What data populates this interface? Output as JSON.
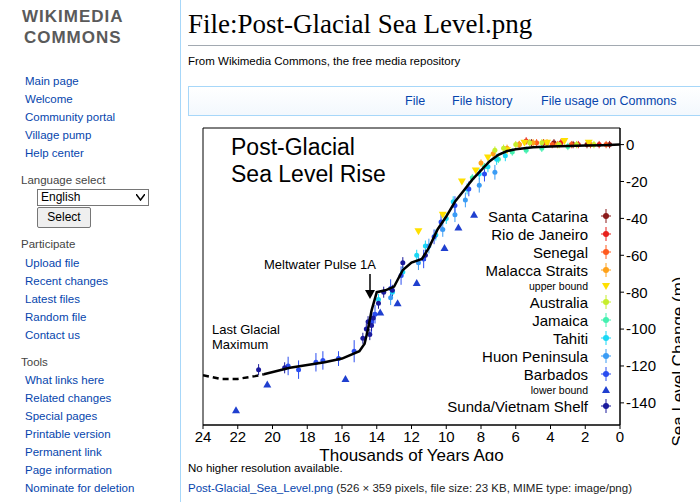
{
  "logo": [
    "WIKIMEDIA",
    "COMMONS"
  ],
  "sidebar": {
    "navigation": [
      "Main page",
      "Welcome",
      "Community portal",
      "Village pump",
      "Help center"
    ],
    "language_select": {
      "heading": "Language select",
      "selected": "English",
      "button": "Select"
    },
    "participate": {
      "heading": "Participate",
      "links": [
        "Upload file",
        "Recent changes",
        "Latest files",
        "Random file",
        "Contact us"
      ]
    },
    "tools": {
      "heading": "Tools",
      "links": [
        "What links here",
        "Related changes",
        "Special pages",
        "Printable version",
        "Permanent link",
        "Page information",
        "Nominate for deletion"
      ]
    }
  },
  "header": {
    "title": "File:Post-Glacial Sea Level.png",
    "subtitle": "From Wikimedia Commons, the free media repository"
  },
  "tabs": [
    "File",
    "File history",
    "File usage on Commons"
  ],
  "footer": {
    "note": "No higher resolution available.",
    "file_link": "Post-Glacial_Sea_Level.png",
    "file_info": "(526 × 359 pixels, file size: 23 KB, MIME type: image/png)"
  },
  "chart_data": {
    "type": "scatter",
    "title": [
      "Post-Glacial",
      "Sea Level Rise"
    ],
    "x_label": "Thousands of Years Ago",
    "y_label": "Sea Level Change (m)",
    "xlim": [
      24,
      0
    ],
    "xticks": [
      24,
      22,
      20,
      18,
      16,
      14,
      12,
      10,
      8,
      6,
      4,
      2,
      0
    ],
    "ylim": [
      -152,
      9
    ],
    "yticks": [
      0,
      -20,
      -40,
      -60,
      -80,
      -100,
      -120,
      -140
    ],
    "grid": false,
    "legend": "lower right",
    "annotations": [
      [
        "Meltwater Pulse 1A"
      ],
      [
        "Last Glacial",
        "Maximum"
      ]
    ],
    "lines": [
      {
        "color": "#000000",
        "line_style": "dashed",
        "x": [
          24,
          23,
          22,
          21,
          20.5
        ],
        "values": [
          -125,
          -127,
          -127,
          -125.5,
          -124.5
        ]
      },
      {
        "color": "#000000",
        "line_style": "solid",
        "x": [
          20.5,
          19,
          18,
          17,
          16,
          15,
          14.7,
          14.5,
          14.3,
          14.0,
          13.5,
          13.0,
          12.5,
          12.0,
          11.4,
          11.0,
          10.5,
          10.0,
          9.5,
          9.0,
          8.5,
          8.0,
          7.5,
          7.0,
          6.5,
          6.0,
          5.0,
          4.0,
          3.0,
          2.0,
          1.0,
          0
        ],
        "values": [
          -124.5,
          -121,
          -119.5,
          -118,
          -116,
          -112,
          -108,
          -100,
          -90,
          -80,
          -79,
          -77,
          -68,
          -64,
          -62,
          -56,
          -46,
          -39,
          -31,
          -25,
          -19,
          -14,
          -9,
          -5.5,
          -3.5,
          -2.5,
          -1.5,
          -1,
          -0.8,
          -0.5,
          -0.3,
          0
        ]
      }
    ],
    "series": [
      {
        "name": "Santa Catarina",
        "color": "#8b1a1a",
        "marker": "circle",
        "x": [
          5.1,
          3.8,
          2.7,
          1.9,
          0.6
        ],
        "values": [
          1,
          1,
          0,
          0,
          0
        ],
        "errors": [
          2,
          2,
          2,
          2,
          2
        ]
      },
      {
        "name": "Rio de Janeiro",
        "color": "#e8201c",
        "marker": "circle",
        "x": [
          5.4,
          4.4,
          3.4,
          2.4,
          1.2
        ],
        "values": [
          2,
          1,
          1,
          0,
          0
        ],
        "errors": [
          2,
          2,
          2,
          2,
          2
        ]
      },
      {
        "name": "Senegal",
        "color": "#ff5a1f",
        "marker": "circle",
        "x": [
          5.8,
          4.8,
          3.9,
          2.8,
          1.7,
          0.8
        ],
        "values": [
          0,
          1,
          0,
          0,
          0,
          0
        ],
        "errors": [
          2,
          2,
          2,
          2,
          2,
          2
        ]
      },
      {
        "name": "Malacca Straits",
        "color": "#ffa21a",
        "marker": "circle",
        "x": [
          8.0,
          7.3,
          6.5,
          5.8,
          5.0,
          4.2,
          3.6
        ],
        "values": [
          -10,
          -5,
          -2,
          0,
          1,
          1,
          0
        ],
        "errors": [
          2,
          2,
          2,
          2,
          2,
          2,
          2
        ]
      },
      {
        "name": "upper bound",
        "color": "#ffe000",
        "marker": "triangle-down",
        "x": [
          11.6,
          10.2,
          9.1,
          8.3,
          7.6,
          6.5,
          5.5,
          4.2,
          3.2,
          1.8
        ],
        "values": [
          -47,
          -38,
          -20,
          -14,
          -7,
          -3,
          1,
          1,
          2,
          1
        ]
      },
      {
        "name": "Australia",
        "color": "#c6ee2c",
        "marker": "circle",
        "x": [
          7.2,
          6.7,
          6.0,
          5.2,
          4.5,
          3.5,
          2.5,
          1.5
        ],
        "values": [
          -3,
          -2,
          0,
          1,
          1,
          0,
          0,
          0
        ],
        "errors": [
          2,
          2,
          2,
          2,
          2,
          2,
          2,
          2
        ]
      },
      {
        "name": "Jamaica",
        "color": "#44f0b0",
        "marker": "circle",
        "x": [
          8.5,
          7.8,
          7.0,
          6.2,
          5.4,
          4.5,
          3.0
        ],
        "values": [
          -18,
          -12,
          -8,
          -4,
          -3,
          -2,
          -1
        ],
        "errors": [
          2,
          2,
          2,
          2,
          2,
          2,
          2
        ]
      },
      {
        "name": "Tahiti",
        "color": "#1ad8f5",
        "marker": "circle",
        "x": [
          13.9,
          13.1,
          12.5,
          11.7,
          11.2,
          10.6,
          10.0,
          9.6,
          8.8,
          8.1,
          7.6,
          7.1,
          6.6
        ],
        "values": [
          -84,
          -80,
          -69,
          -60,
          -55,
          -49,
          -40,
          -31,
          -24,
          -16,
          -12,
          -8,
          -6
        ],
        "errors": [
          3,
          3,
          3,
          3,
          3,
          3,
          3,
          3,
          3,
          3,
          3,
          3,
          3
        ]
      },
      {
        "name": "Huon Peninsula",
        "color": "#3a9cf5",
        "marker": "circle",
        "x": [
          13.2,
          11.6,
          11.0,
          10.2,
          9.5,
          8.9,
          8.1,
          7.2
        ],
        "values": [
          -83,
          -64,
          -55,
          -46,
          -38,
          -30,
          -22,
          -15
        ],
        "errors": [
          4,
          4,
          4,
          4,
          4,
          4,
          4,
          4
        ]
      },
      {
        "name": "Barbados",
        "color": "#2a4df0",
        "marker": "circle",
        "x": [
          19.1,
          18.5,
          17.5,
          17.1,
          16.2,
          15.3,
          14.3,
          14.1,
          13.2,
          12.6,
          11.3,
          10.7,
          10.3,
          9.5,
          8.7,
          7.8
        ],
        "values": [
          -120,
          -122,
          -118,
          -117,
          -116,
          -112,
          -96,
          -92,
          -78,
          -71,
          -62,
          -50,
          -42,
          -33,
          -24,
          -16
        ],
        "errors": [
          5,
          5,
          5,
          5,
          4,
          6,
          6,
          5,
          5,
          5,
          5,
          4,
          5,
          5,
          4,
          4
        ]
      },
      {
        "name": "lower bound",
        "color": "#1f3fcf",
        "marker": "triangle-up",
        "x": [
          22.1,
          20.3,
          15.8,
          13.8,
          12.8,
          11.7,
          10.1,
          9.3,
          8.4
        ],
        "values": [
          -144,
          -130,
          -127,
          -91,
          -86,
          -75,
          -56,
          -45,
          -38
        ]
      },
      {
        "name": "Sunda/Vietnam Shelf",
        "color": "#1a1a9c",
        "marker": "circle",
        "x": [
          20.8,
          19.3,
          14.8,
          14.6,
          14.5,
          14.4,
          14.3,
          14.2,
          13.9,
          13.6,
          13.1,
          12.5,
          11.2
        ],
        "values": [
          -122,
          -121,
          -105,
          -100,
          -96,
          -103,
          -98,
          -94,
          -86,
          -80,
          -79,
          -64,
          -60
        ],
        "errors": [
          3,
          3,
          3,
          3,
          3,
          3,
          3,
          3,
          3,
          3,
          3,
          3,
          3
        ]
      }
    ]
  }
}
